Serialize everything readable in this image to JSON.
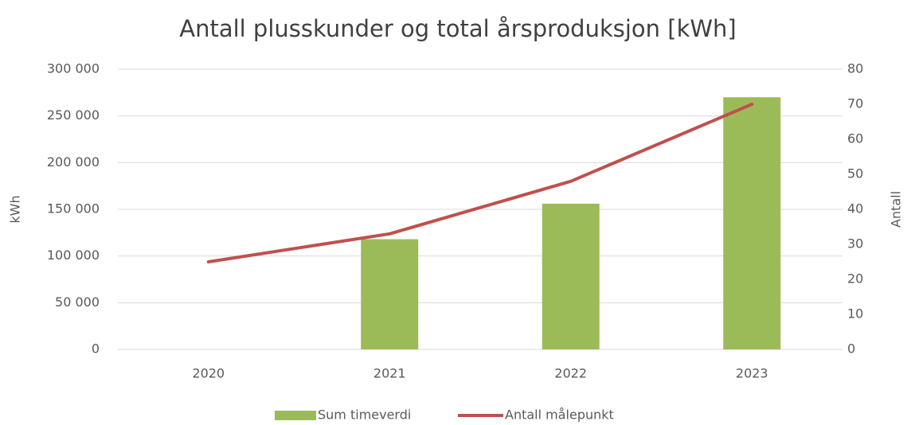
{
  "chart_data": {
    "type": "bar",
    "title": "Antall plusskunder og total årsproduksjon [kWh]",
    "categories": [
      "2020",
      "2021",
      "2022",
      "2023"
    ],
    "series": [
      {
        "name": "Sum timeverdi",
        "color": "#9bbb59",
        "values": [
          null,
          118000,
          156000,
          270000
        ]
      },
      {
        "name": "Antall målepunkt",
        "color": "#c0504d",
        "type": "line",
        "axis": "y2",
        "values": [
          25,
          33,
          48,
          70
        ]
      }
    ],
    "ylabel": "kWh",
    "y2label": "Antall",
    "ylim": [
      0,
      300000
    ],
    "yticks": [
      0,
      {
        "value": 50000,
        "label": "50 000"
      },
      {
        "value": 100000,
        "label": "100 000"
      },
      {
        "value": 150000,
        "label": "150 000"
      },
      {
        "value": 200000,
        "label": "200 000"
      },
      {
        "value": 250000,
        "label": "250 000"
      },
      {
        "value": 300000,
        "label": "300 000"
      }
    ],
    "y2lim": [
      0,
      80
    ],
    "y2ticks": [
      0,
      10,
      20,
      30,
      40,
      50,
      60,
      70,
      80
    ],
    "grid": true,
    "legend": "bottom"
  }
}
